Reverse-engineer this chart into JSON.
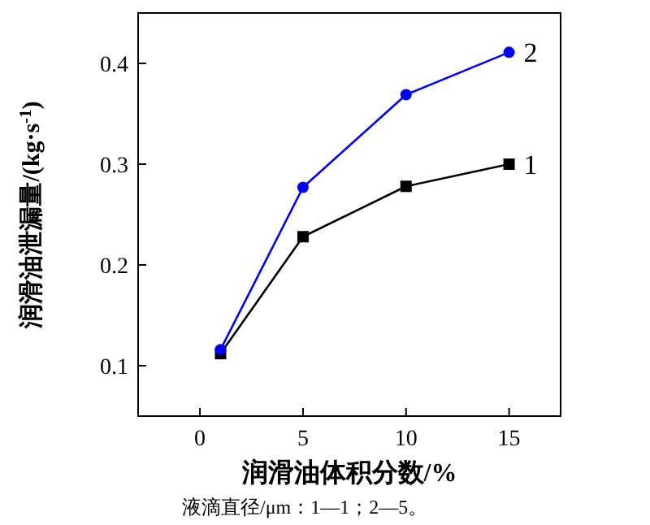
{
  "chart_data": {
    "type": "line",
    "xlabel": "润滑油体积分数/%",
    "ylabel": "润滑油泄漏量/(kg·s$^{-1}$)",
    "x": [
      1,
      5,
      10,
      15
    ],
    "xlim": [
      -3,
      17.5
    ],
    "xticks": [
      0,
      5,
      10,
      15
    ],
    "ylim": [
      0.05,
      0.45
    ],
    "yticks": [
      0.1,
      0.2,
      0.3,
      0.4
    ],
    "series": [
      {
        "name": "1",
        "color": "#000000",
        "marker": "square",
        "values": [
          0.112,
          0.228,
          0.278,
          0.3
        ]
      },
      {
        "name": "2",
        "color": "#0000ff",
        "marker": "circle",
        "values": [
          0.116,
          0.277,
          0.369,
          0.411
        ]
      }
    ],
    "annotations": [
      "液滴直径/μm：1—1；2—5。"
    ]
  }
}
